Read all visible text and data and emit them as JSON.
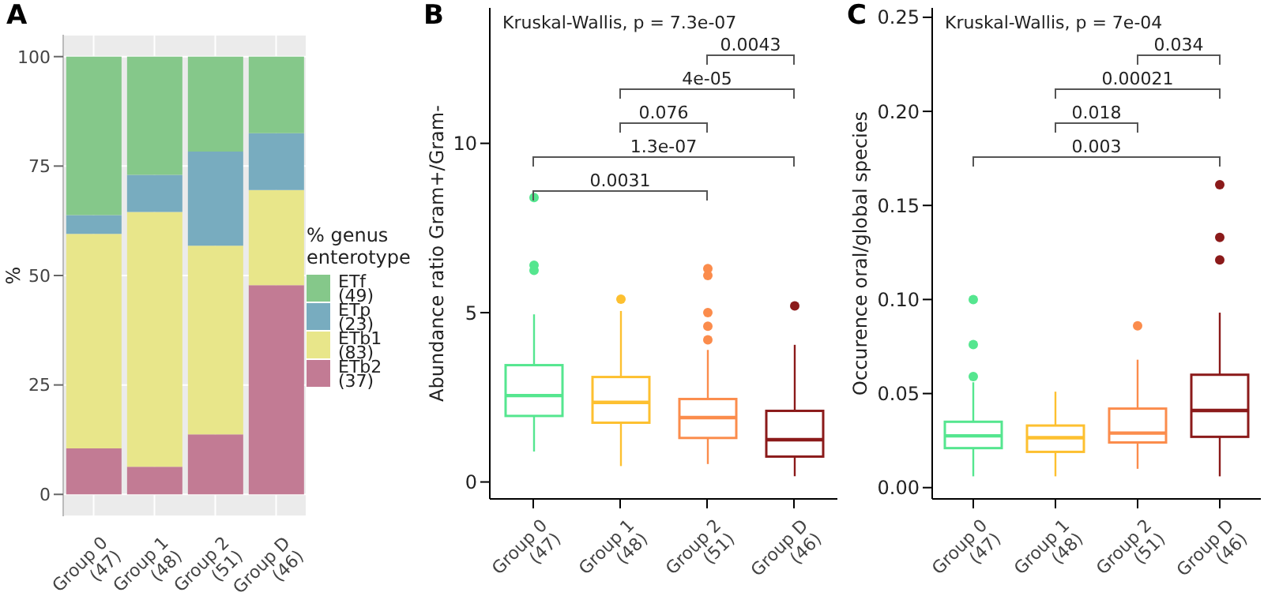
{
  "chart_data": [
    {
      "type": "bar",
      "title": "A",
      "ylabel": "%",
      "legend_title": "% genus enterotype",
      "categories": [
        "Group 0\n(47)",
        "Group 1\n(48)",
        "Group 2\n(51)",
        "Group D\n(46)"
      ],
      "stacked": true,
      "series": [
        {
          "name": "ETb2\n(37)",
          "color": "#c27b94",
          "values": [
            10.5,
            6.3,
            13.7,
            47.8
          ]
        },
        {
          "name": "ETb1\n(83)",
          "color": "#e8e68a",
          "values": [
            49,
            58.2,
            43.1,
            21.7
          ]
        },
        {
          "name": "ETp\n(23)",
          "color": "#78acbf",
          "values": [
            4.3,
            8.5,
            21.5,
            13
          ]
        },
        {
          "name": "ETf\n(49)",
          "color": "#85c88a",
          "values": [
            36.2,
            27,
            21.7,
            17.5
          ]
        }
      ],
      "ylim": [
        -5,
        105
      ],
      "yticks": [
        0,
        25,
        50,
        75,
        100
      ],
      "grid": true,
      "legend": "right"
    },
    {
      "type": "box",
      "title": "B",
      "ylabel": "Abundance ratio Gram+/Gram-",
      "categories": [
        "Group 0\n(47)",
        "Group 1\n(48)",
        "Group 2\n(51)",
        "Group D\n(46)"
      ],
      "colors": [
        "#55e68f",
        "#fdc030",
        "#fb8c4c",
        "#8b1a1a"
      ],
      "boxes": [
        {
          "low": 0.9,
          "q1": 1.95,
          "median": 2.55,
          "q3": 3.45,
          "high": 4.95,
          "outliers": [
            8.4,
            6.4,
            6.25
          ]
        },
        {
          "low": 0.47,
          "q1": 1.75,
          "median": 2.35,
          "q3": 3.1,
          "high": 5.05,
          "outliers": [
            5.4
          ]
        },
        {
          "low": 0.53,
          "q1": 1.3,
          "median": 1.9,
          "q3": 2.45,
          "high": 3.9,
          "outliers": [
            6.3,
            6.1,
            5.0,
            4.6,
            4.2
          ]
        },
        {
          "low": 0.17,
          "q1": 0.75,
          "median": 1.25,
          "q3": 2.1,
          "high": 4.05,
          "outliers": [
            5.2
          ]
        }
      ],
      "annotations": [
        "Kruskal-Wallis, p = 7.3e-07",
        "0.0031",
        "1.3e-07",
        "0.076",
        "4e-05",
        "0.0043"
      ],
      "ylim": [
        -0.5,
        14
      ],
      "yticks": [
        0,
        5,
        10
      ],
      "grid": false
    },
    {
      "type": "box",
      "title": "C",
      "ylabel": "Occurence oral/global species",
      "categories": [
        "Group 0\n(47)",
        "Group 1\n(48)",
        "Group 2\n(51)",
        "Group D\n(46)"
      ],
      "colors": [
        "#55e68f",
        "#fdc030",
        "#fb8c4c",
        "#8b1a1a"
      ],
      "boxes": [
        {
          "low": 0.006,
          "q1": 0.021,
          "median": 0.0275,
          "q3": 0.035,
          "high": 0.056,
          "outliers": [
            0.059,
            0.076,
            0.1
          ]
        },
        {
          "low": 0.006,
          "q1": 0.019,
          "median": 0.0265,
          "q3": 0.033,
          "high": 0.051
        },
        {
          "low": 0.01,
          "q1": 0.024,
          "median": 0.029,
          "q3": 0.042,
          "high": 0.068,
          "outliers": [
            0.086
          ]
        },
        {
          "low": 0.006,
          "q1": 0.027,
          "median": 0.041,
          "q3": 0.06,
          "high": 0.093,
          "outliers": [
            0.121,
            0.133,
            0.161
          ]
        }
      ],
      "annotations": [
        "Kruskal-Wallis, p = 7e-04",
        "0.003",
        "0.018",
        "0.00021",
        "0.034"
      ],
      "ylim": [
        -0.006,
        0.255
      ],
      "yticks": [
        {
          "value": 0,
          "label": "0.00"
        },
        {
          "value": 0.05,
          "label": "0.05"
        },
        {
          "value": 0.1,
          "label": "0.10"
        },
        {
          "value": 0.15,
          "label": "0.15"
        },
        {
          "value": 0.2,
          "label": "0.20"
        },
        {
          "value": 0.25,
          "label": "0.25"
        }
      ],
      "grid": false
    }
  ]
}
